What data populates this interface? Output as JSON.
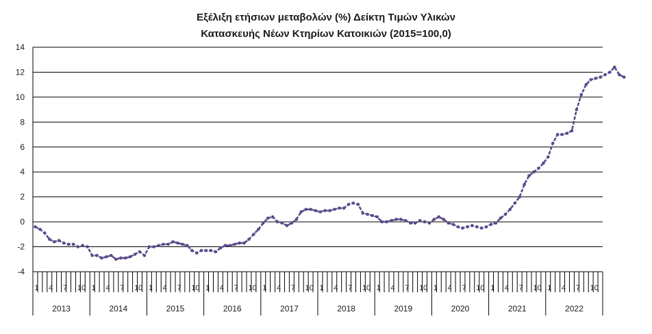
{
  "chart_data": {
    "type": "line",
    "title": "Εξέλιξη ετήσιων μεταβολών (%) Δείκτη Τιμών Υλικών",
    "subtitle": "Κατασκευής Νέων Κτηρίων Κατοικιών (2015=100,0)",
    "ylim": [
      -4,
      14
    ],
    "yticks": [
      "-4",
      "-2",
      "0",
      "2",
      "4",
      "6",
      "8",
      "10",
      "12",
      "14"
    ],
    "month_tick_labels": [
      "1",
      "4",
      "7",
      "10"
    ],
    "years": [
      "2013",
      "2014",
      "2015",
      "2016",
      "2017",
      "2018",
      "2019",
      "2020",
      "2021",
      "2022"
    ],
    "grid": true,
    "legend": "none",
    "line_color": "#5b4a8a",
    "series": [
      {
        "values": [
          -0.4,
          -0.6,
          -0.9,
          -1.4,
          -1.6,
          -1.5,
          -1.7,
          -1.8,
          -1.8,
          -2.0,
          -1.9,
          -2.0,
          -2.7,
          -2.7,
          -2.9,
          -2.8,
          -2.7,
          -3.0,
          -2.9,
          -2.9,
          -2.8,
          -2.6,
          -2.4,
          -2.7,
          -2.0,
          -2.0,
          -1.9,
          -1.8,
          -1.8,
          -1.6,
          -1.7,
          -1.8,
          -1.9,
          -2.3,
          -2.5,
          -2.3,
          -2.3,
          -2.3,
          -2.4,
          -2.1,
          -1.9,
          -1.9,
          -1.8,
          -1.7,
          -1.7,
          -1.4,
          -1.0,
          -0.6,
          -0.1,
          0.3,
          0.4,
          0.0,
          -0.1,
          -0.3,
          -0.1,
          0.2,
          0.8,
          1.0,
          1.0,
          0.9,
          0.8,
          0.9,
          0.9,
          1.0,
          1.1,
          1.1,
          1.4,
          1.5,
          1.4,
          0.7,
          0.6,
          0.5,
          0.4,
          0.0,
          0.0,
          0.1,
          0.2,
          0.2,
          0.1,
          -0.1,
          -0.1,
          0.1,
          0.0,
          -0.1,
          0.2,
          0.4,
          0.2,
          -0.1,
          -0.2,
          -0.4,
          -0.5,
          -0.4,
          -0.3,
          -0.4,
          -0.5,
          -0.4,
          -0.2,
          -0.1,
          0.3,
          0.6,
          1.0,
          1.5,
          2.0,
          3.0,
          3.7,
          4.0,
          4.3,
          4.7,
          5.2,
          6.3,
          7.0,
          7.0,
          7.1,
          7.3,
          9.0,
          10.2,
          11.0,
          11.4,
          11.5,
          11.6,
          11.8,
          12.0,
          12.4,
          11.8,
          11.6
        ]
      }
    ]
  }
}
